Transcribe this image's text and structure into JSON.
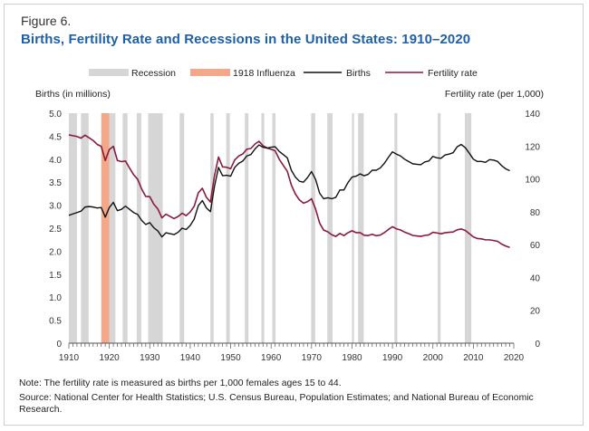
{
  "header": {
    "figure_label": "Figure 6.",
    "title": "Births, Fertility Rate and Recessions in the United States: 1910–2020"
  },
  "footer": {
    "note": "Note: The fertility rate is measured as births per 1,000 females ages 15 to 44.",
    "source": "Source: National Center for Health Statistics; U.S. Census Bureau, Population Estimates; and National Bureau of Economic Research."
  },
  "colors": {
    "recession": "#d6d6d6",
    "influenza": "#f2a889",
    "births": "#111111",
    "fertility": "#8b1a3a"
  },
  "chart_data": {
    "type": "line",
    "title": "Births, Fertility Rate and Recessions in the United States: 1910–2020",
    "xlabel": "",
    "ylabel": "Births (in millions)",
    "y2label": "Fertility rate (per 1,000)",
    "xlim": [
      1910,
      2020
    ],
    "ylim": [
      0,
      5.0
    ],
    "y2lim": [
      0,
      140
    ],
    "x_ticks": [
      1910,
      1920,
      1930,
      1940,
      1950,
      1960,
      1970,
      1980,
      1990,
      2000,
      2010,
      2020
    ],
    "y_ticks": [
      "0",
      "0.5",
      "1.0",
      "1.5",
      "2.0",
      "2.5",
      "3.0",
      "3.5",
      "4.0",
      "4.5",
      "5.0"
    ],
    "y2_ticks": [
      "0",
      "20",
      "40",
      "60",
      "80",
      "100",
      "120",
      "140"
    ],
    "legend": {
      "recession": "Recession",
      "influenza": "1918 Influenza",
      "births": "Births",
      "fertility": "Fertility rate",
      "placement": "top"
    },
    "recessions": [
      [
        1910,
        1912
      ],
      [
        1913,
        1914.9
      ],
      [
        1918.6,
        1919.2
      ],
      [
        1920,
        1921.5
      ],
      [
        1923.3,
        1924.5
      ],
      [
        1926.8,
        1927.9
      ],
      [
        1929.6,
        1933.2
      ],
      [
        1937.4,
        1938.5
      ],
      [
        1945,
        1945.8
      ],
      [
        1948.9,
        1949.8
      ],
      [
        1953.5,
        1954.4
      ],
      [
        1957.6,
        1958.3
      ],
      [
        1960.3,
        1961.1
      ],
      [
        1969.9,
        1970.9
      ],
      [
        1973.9,
        1975.2
      ],
      [
        1980,
        1980.5
      ],
      [
        1981.5,
        1982.9
      ],
      [
        1990.5,
        1991.2
      ],
      [
        2001.2,
        2001.9
      ],
      [
        2007.9,
        2009.5
      ]
    ],
    "influenza": [
      1918,
      1920
    ],
    "series": [
      {
        "name": "Births",
        "unit": "millions",
        "x": [
          1910,
          1911,
          1912,
          1913,
          1914,
          1915,
          1916,
          1917,
          1918,
          1919,
          1920,
          1921,
          1922,
          1923,
          1924,
          1925,
          1926,
          1927,
          1928,
          1929,
          1930,
          1931,
          1932,
          1933,
          1934,
          1935,
          1936,
          1937,
          1938,
          1939,
          1940,
          1941,
          1942,
          1943,
          1944,
          1945,
          1946,
          1947,
          1948,
          1949,
          1950,
          1951,
          1952,
          1953,
          1954,
          1955,
          1956,
          1957,
          1958,
          1959,
          1960,
          1961,
          1962,
          1963,
          1964,
          1965,
          1966,
          1967,
          1968,
          1969,
          1970,
          1971,
          1972,
          1973,
          1974,
          1975,
          1976,
          1977,
          1978,
          1979,
          1980,
          1981,
          1982,
          1983,
          1984,
          1985,
          1986,
          1987,
          1988,
          1989,
          1990,
          1991,
          1992,
          1993,
          1994,
          1995,
          1996,
          1997,
          1998,
          1999,
          2000,
          2001,
          2002,
          2003,
          2004,
          2005,
          2006,
          2007,
          2008,
          2009,
          2010,
          2011,
          2012,
          2013,
          2014,
          2015,
          2016,
          2017,
          2018,
          2019
        ],
        "values": [
          2.78,
          2.81,
          2.84,
          2.87,
          2.96,
          2.97,
          2.96,
          2.94,
          2.95,
          2.74,
          2.95,
          3.06,
          2.88,
          2.91,
          2.98,
          2.91,
          2.84,
          2.8,
          2.67,
          2.58,
          2.62,
          2.51,
          2.44,
          2.31,
          2.4,
          2.38,
          2.36,
          2.41,
          2.5,
          2.47,
          2.56,
          2.7,
          2.99,
          3.1,
          2.94,
          2.86,
          3.41,
          3.82,
          3.64,
          3.65,
          3.63,
          3.82,
          3.91,
          3.96,
          4.07,
          4.1,
          4.22,
          4.31,
          4.26,
          4.24,
          4.26,
          4.27,
          4.17,
          4.1,
          4.03,
          3.76,
          3.61,
          3.52,
          3.5,
          3.6,
          3.73,
          3.56,
          3.26,
          3.14,
          3.16,
          3.14,
          3.17,
          3.33,
          3.33,
          3.49,
          3.61,
          3.63,
          3.68,
          3.64,
          3.67,
          3.76,
          3.76,
          3.81,
          3.91,
          4.04,
          4.16,
          4.11,
          4.07,
          4.0,
          3.95,
          3.9,
          3.89,
          3.88,
          3.94,
          3.96,
          4.06,
          4.03,
          4.02,
          4.09,
          4.11,
          4.14,
          4.27,
          4.32,
          4.25,
          4.13,
          4.0,
          3.95,
          3.95,
          3.93,
          3.99,
          3.98,
          3.95,
          3.86,
          3.79,
          3.75
        ]
      },
      {
        "name": "Fertility rate",
        "unit": "per 1,000",
        "x": [
          1910,
          1911,
          1912,
          1913,
          1914,
          1915,
          1916,
          1917,
          1918,
          1919,
          1920,
          1921,
          1922,
          1923,
          1924,
          1925,
          1926,
          1927,
          1928,
          1929,
          1930,
          1931,
          1932,
          1933,
          1934,
          1935,
          1936,
          1937,
          1938,
          1939,
          1940,
          1941,
          1942,
          1943,
          1944,
          1945,
          1946,
          1947,
          1948,
          1949,
          1950,
          1951,
          1952,
          1953,
          1954,
          1955,
          1956,
          1957,
          1958,
          1959,
          1960,
          1961,
          1962,
          1963,
          1964,
          1965,
          1966,
          1967,
          1968,
          1969,
          1970,
          1971,
          1972,
          1973,
          1974,
          1975,
          1976,
          1977,
          1978,
          1979,
          1980,
          1981,
          1982,
          1983,
          1984,
          1985,
          1986,
          1987,
          1988,
          1989,
          1990,
          1991,
          1992,
          1993,
          1994,
          1995,
          1996,
          1997,
          1998,
          1999,
          2000,
          2001,
          2002,
          2003,
          2004,
          2005,
          2006,
          2007,
          2008,
          2009,
          2010,
          2011,
          2012,
          2013,
          2014,
          2015,
          2016,
          2017,
          2018,
          2019
        ],
        "values": [
          126.8,
          126.3,
          125.8,
          124.8,
          126.6,
          125.0,
          123.4,
          121.0,
          119.8,
          111.2,
          117.9,
          119.8,
          111.2,
          110.5,
          110.9,
          106.6,
          102.6,
          99.8,
          93.8,
          89.3,
          89.2,
          84.6,
          81.7,
          76.3,
          78.5,
          77.2,
          75.8,
          77.1,
          79.1,
          77.6,
          79.9,
          83.4,
          91.5,
          94.3,
          88.8,
          85.9,
          101.9,
          113.3,
          107.3,
          107.1,
          106.2,
          111.5,
          113.9,
          115.2,
          118.1,
          118.5,
          121.2,
          122.9,
          120.2,
          118.8,
          118.0,
          117.1,
          112.0,
          108.3,
          104.7,
          96.3,
          90.8,
          87.2,
          85.2,
          86.1,
          87.9,
          81.6,
          73.1,
          68.8,
          67.8,
          66.0,
          65.0,
          66.8,
          65.5,
          67.2,
          68.4,
          67.3,
          67.3,
          65.7,
          65.5,
          66.3,
          65.4,
          65.8,
          67.3,
          69.2,
          70.9,
          69.6,
          68.9,
          67.6,
          66.7,
          65.6,
          65.3,
          65.0,
          65.6,
          65.9,
          67.5,
          67.1,
          66.6,
          67.2,
          67.5,
          67.7,
          69.0,
          69.5,
          68.6,
          66.7,
          64.7,
          63.7,
          63.5,
          62.9,
          62.9,
          62.5,
          62.0,
          60.3,
          59.1,
          58.3
        ]
      }
    ],
    "grid": false
  }
}
